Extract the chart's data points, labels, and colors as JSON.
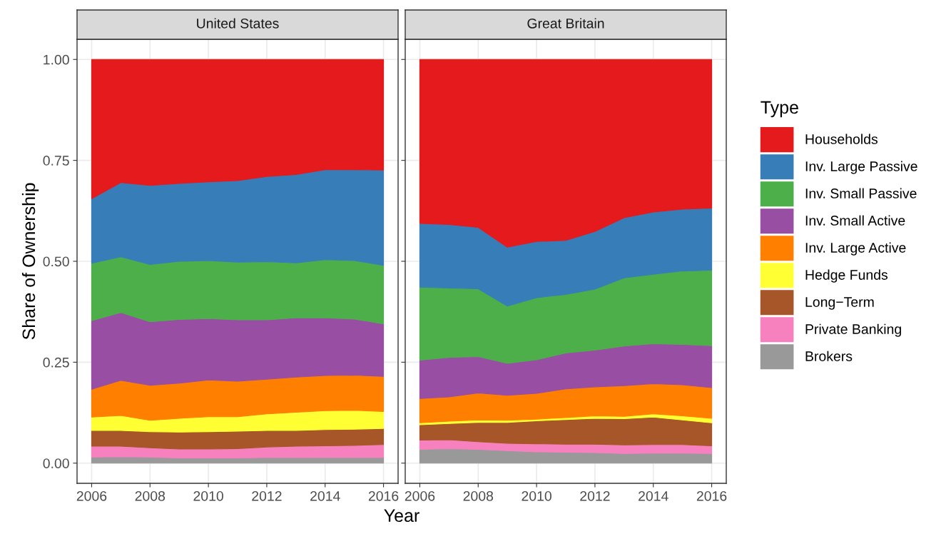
{
  "chart_data": [
    {
      "type": "area",
      "stacked": true,
      "title": "United States",
      "xlabel": "Year",
      "ylabel": "Share of Ownership",
      "grid": true,
      "legend": "right",
      "legend_title": "Type",
      "x": [
        2006,
        2007,
        2008,
        2009,
        2010,
        2011,
        2012,
        2013,
        2014,
        2015,
        2016
      ],
      "xlim": [
        2005.5,
        2016.5
      ],
      "xticks": [
        2006,
        2008,
        2010,
        2012,
        2014,
        2016
      ],
      "ylim": [
        -0.05,
        1.05
      ],
      "yticks": [
        {
          "value": 0,
          "label": "0.00"
        },
        {
          "value": 0.25,
          "label": "0.25"
        },
        {
          "value": 0.5,
          "label": "0.50"
        },
        {
          "value": 0.75,
          "label": "0.75"
        },
        {
          "value": 1,
          "label": "1.00"
        }
      ],
      "series": [
        {
          "name": "Brokers",
          "color": "#999999",
          "values": [
            0.015,
            0.016,
            0.015,
            0.013,
            0.013,
            0.013,
            0.014,
            0.014,
            0.014,
            0.014,
            0.014
          ]
        },
        {
          "name": "Private Banking",
          "color": "#f781bf",
          "values": [
            0.027,
            0.026,
            0.023,
            0.022,
            0.022,
            0.023,
            0.026,
            0.028,
            0.029,
            0.03,
            0.032
          ]
        },
        {
          "name": "Long−Term",
          "color": "#a65628",
          "values": [
            0.039,
            0.039,
            0.04,
            0.042,
            0.043,
            0.043,
            0.041,
            0.039,
            0.04,
            0.04,
            0.04
          ]
        },
        {
          "name": "Hedge Funds",
          "color": "#ffff33",
          "values": [
            0.033,
            0.037,
            0.028,
            0.034,
            0.037,
            0.036,
            0.041,
            0.045,
            0.047,
            0.047,
            0.042
          ]
        },
        {
          "name": "Inv. Large Active",
          "color": "#ff7f00",
          "values": [
            0.069,
            0.087,
            0.087,
            0.087,
            0.091,
            0.088,
            0.086,
            0.087,
            0.087,
            0.087,
            0.087
          ]
        },
        {
          "name": "Inv. Small Active",
          "color": "#984ea3",
          "values": [
            0.17,
            0.168,
            0.157,
            0.158,
            0.152,
            0.152,
            0.147,
            0.147,
            0.143,
            0.139,
            0.13
          ]
        },
        {
          "name": "Inv. Small Passive",
          "color": "#4daf4a",
          "values": [
            0.142,
            0.138,
            0.142,
            0.144,
            0.144,
            0.143,
            0.144,
            0.136,
            0.144,
            0.145,
            0.145
          ]
        },
        {
          "name": "Inv. Large Passive",
          "color": "#377eb8",
          "values": [
            0.16,
            0.184,
            0.196,
            0.193,
            0.195,
            0.202,
            0.211,
            0.219,
            0.223,
            0.225,
            0.236
          ]
        },
        {
          "name": "Households",
          "color": "#e41a1c",
          "values": [
            0.345,
            0.305,
            0.312,
            0.307,
            0.303,
            0.3,
            0.29,
            0.285,
            0.273,
            0.273,
            0.274
          ]
        }
      ]
    },
    {
      "type": "area",
      "stacked": true,
      "title": "Great Britain",
      "grid": true,
      "tick_labels": "x",
      "x": [
        2006,
        2007,
        2008,
        2009,
        2010,
        2011,
        2012,
        2013,
        2014,
        2015,
        2016
      ],
      "xlim": [
        2005.5,
        2016.5
      ],
      "xticks": [
        2006,
        2008,
        2010,
        2012,
        2014,
        2016
      ],
      "ylim": [
        -0.05,
        1.05
      ],
      "yticks": [
        {
          "value": 0,
          "label": null
        },
        {
          "value": 0.25,
          "label": null
        },
        {
          "value": 0.5,
          "label": null
        },
        {
          "value": 0.75,
          "label": null
        },
        {
          "value": 1,
          "label": null
        }
      ],
      "series": [
        {
          "color": "#999999",
          "values": [
            0.034,
            0.036,
            0.034,
            0.031,
            0.028,
            0.027,
            0.026,
            0.024,
            0.025,
            0.025,
            0.024
          ]
        },
        {
          "color": "#f781bf",
          "values": [
            0.023,
            0.022,
            0.019,
            0.018,
            0.02,
            0.02,
            0.021,
            0.021,
            0.021,
            0.021,
            0.019
          ]
        },
        {
          "color": "#a65628",
          "values": [
            0.038,
            0.04,
            0.048,
            0.052,
            0.057,
            0.061,
            0.064,
            0.065,
            0.068,
            0.061,
            0.057
          ]
        },
        {
          "color": "#ffff33",
          "values": [
            0.005,
            0.006,
            0.006,
            0.005,
            0.004,
            0.005,
            0.006,
            0.006,
            0.008,
            0.01,
            0.011
          ]
        },
        {
          "color": "#ff7f00",
          "values": [
            0.06,
            0.06,
            0.067,
            0.062,
            0.064,
            0.071,
            0.072,
            0.076,
            0.075,
            0.077,
            0.076
          ]
        },
        {
          "color": "#984ea3",
          "values": [
            0.095,
            0.098,
            0.09,
            0.079,
            0.083,
            0.089,
            0.091,
            0.098,
            0.099,
            0.1,
            0.104
          ]
        },
        {
          "color": "#4daf4a",
          "values": [
            0.181,
            0.172,
            0.168,
            0.142,
            0.154,
            0.145,
            0.151,
            0.169,
            0.172,
            0.182,
            0.187
          ]
        },
        {
          "color": "#377eb8",
          "values": [
            0.158,
            0.157,
            0.152,
            0.146,
            0.139,
            0.134,
            0.143,
            0.149,
            0.154,
            0.153,
            0.154
          ]
        },
        {
          "color": "#e41a1c",
          "values": [
            0.406,
            0.409,
            0.416,
            0.465,
            0.451,
            0.448,
            0.426,
            0.392,
            0.378,
            0.371,
            0.368
          ]
        }
      ]
    }
  ]
}
